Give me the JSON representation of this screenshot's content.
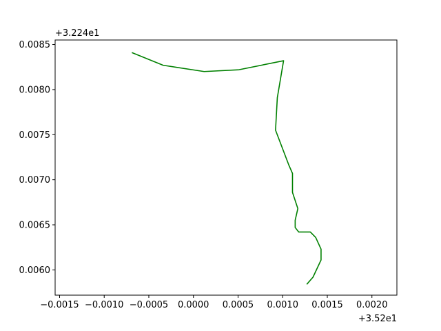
{
  "chart_data": {
    "type": "line",
    "title": "",
    "xlabel": "",
    "ylabel": "",
    "x_offset_label": "+3.52e1",
    "y_offset_label": "+3.224e1",
    "x_offset": 35.2,
    "y_offset": 32.24,
    "xlim": [
      -0.00155,
      0.00228
    ],
    "ylim": [
      0.00572,
      0.00855
    ],
    "x_ticks": [
      -0.0015,
      -0.001,
      -0.0005,
      0.0,
      0.0005,
      0.001,
      0.0015,
      0.002
    ],
    "x_tick_labels": [
      "−0.0015",
      "−0.0010",
      "−0.0005",
      "0.0000",
      "0.0005",
      "0.0010",
      "0.0015",
      "0.0020"
    ],
    "y_ticks": [
      0.006,
      0.0065,
      0.007,
      0.0075,
      0.008,
      0.0085
    ],
    "y_tick_labels": [
      "0.0060",
      "0.0065",
      "0.0070",
      "0.0075",
      "0.0080",
      "0.0085"
    ],
    "grid": false,
    "series": [
      {
        "color": "#008000",
        "x": [
          -0.00069,
          -0.00034,
          0.00012,
          0.00051,
          0.00101,
          0.00094,
          0.00092,
          0.00107,
          0.00111,
          0.00111,
          0.00117,
          0.00114,
          0.00114,
          0.00118,
          0.00131,
          0.00137,
          0.00143,
          0.00143,
          0.00134,
          0.00127
        ],
        "y": [
          0.00841,
          0.00827,
          0.0082,
          0.00822,
          0.00832,
          0.00791,
          0.00755,
          0.00716,
          0.00707,
          0.00686,
          0.00668,
          0.00655,
          0.00647,
          0.00642,
          0.00642,
          0.00636,
          0.00623,
          0.00611,
          0.00592,
          0.00584
        ]
      }
    ]
  }
}
